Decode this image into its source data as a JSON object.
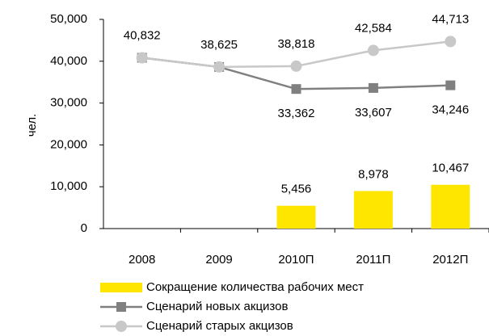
{
  "chart_data": {
    "type": "combo",
    "categories": [
      "2008",
      "2009",
      "2010П",
      "2011П",
      "2012П"
    ],
    "y_label": "чел.",
    "ylim": [
      0,
      50000
    ],
    "yticks": [
      0,
      {
        "value": 10000,
        "label": "10,000"
      },
      {
        "value": 20000,
        "label": "20,000"
      },
      {
        "value": 30000,
        "label": "30,000"
      },
      {
        "value": 40000,
        "label": "40,000"
      },
      {
        "value": 50000,
        "label": "50,000"
      }
    ],
    "series": [
      {
        "name": "Сокращение количества рабочих мест",
        "type": "bar",
        "color": "#ffe600",
        "values": [
          null,
          null,
          5456,
          8978,
          10467
        ],
        "value_labels": [
          null,
          null,
          "5,456",
          "8,978",
          "10,467"
        ]
      },
      {
        "name": "Сценарий новых акцизов",
        "type": "line",
        "marker": "square",
        "color": "#808080",
        "values": [
          40832,
          38625,
          33362,
          33607,
          34246
        ],
        "value_labels": [
          null,
          null,
          "33,362",
          "33,607",
          "34,246"
        ]
      },
      {
        "name": "Сценарий старых акцизов",
        "type": "line",
        "marker": "circle",
        "color": "#c8c8c8",
        "values": [
          40832,
          38625,
          38818,
          42584,
          44713
        ],
        "value_labels": [
          "40,832",
          "38,625",
          "38,818",
          "42,584",
          "44,713"
        ]
      }
    ]
  }
}
